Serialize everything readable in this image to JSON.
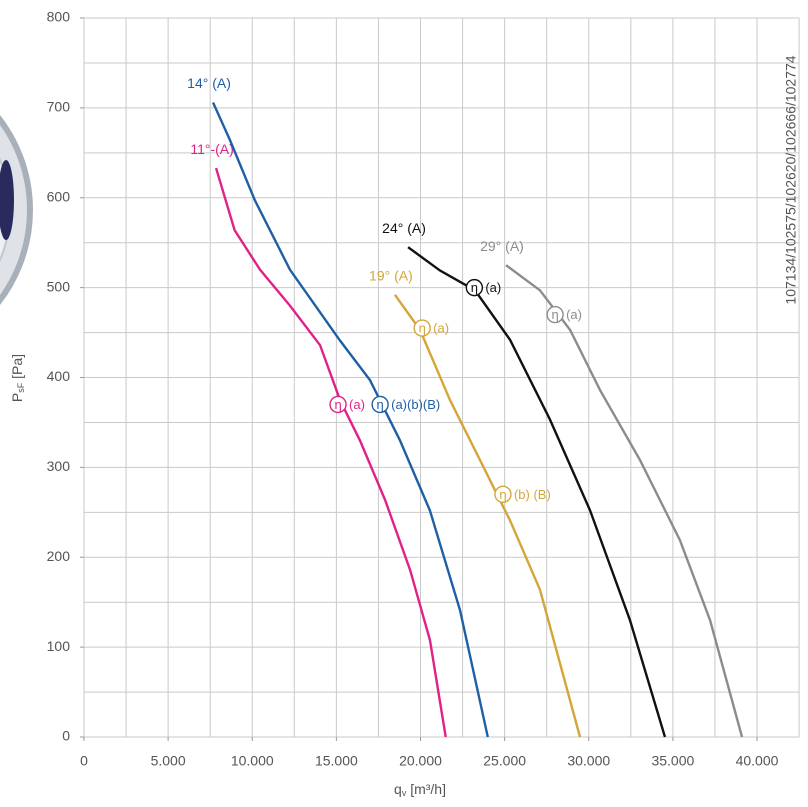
{
  "chart_data": {
    "type": "line",
    "x_label": {
      "main": "q",
      "sub": "v",
      "unit": " [m³/h]"
    },
    "y_label": {
      "main": "P",
      "sub": "sF",
      "unit": " [Pa]"
    },
    "side_text": "107134/102575/102620/102666/102774",
    "xlim": [
      0,
      42500
    ],
    "ylim": [
      0,
      800
    ],
    "xticks": [
      0,
      {
        "value": 5000,
        "label": "5.000"
      },
      {
        "value": 10000,
        "label": "10.000"
      },
      {
        "value": 15000,
        "label": "15.000"
      },
      {
        "value": 20000,
        "label": "20.000"
      },
      {
        "value": 25000,
        "label": "25.000"
      },
      {
        "value": 30000,
        "label": "30.000"
      },
      {
        "value": 35000,
        "label": "35.000"
      },
      {
        "value": 40000,
        "label": "40.000"
      }
    ],
    "yticks": [
      0,
      100,
      200,
      300,
      400,
      500,
      600,
      700,
      800
    ],
    "xgrid": [
      0,
      2500,
      5000,
      7500,
      10000,
      12500,
      15000,
      17500,
      20000,
      22500,
      25000,
      27500,
      30000,
      32500,
      35000,
      37500,
      40000,
      42500
    ],
    "ygrid": [
      0,
      50,
      100,
      150,
      200,
      250,
      300,
      350,
      400,
      450,
      500,
      550,
      600,
      650,
      700,
      750,
      800
    ],
    "grid": true,
    "series": [
      {
        "name": "11°-(A)",
        "color": "#e0218a",
        "x": [
          7850,
          8950,
          10460,
          12240,
          14030,
          15215,
          16400,
          17890,
          19380,
          20560,
          21500
        ],
        "values": [
          633,
          564,
          520,
          480,
          436,
          375,
          330,
          264,
          186,
          108,
          0
        ]
      },
      {
        "name": "14° (A)",
        "color": "#1f5fa6",
        "x": [
          7670,
          8680,
          10160,
          12240,
          15220,
          17000,
          18780,
          20560,
          22350,
          24000
        ],
        "values": [
          706,
          664,
          597,
          520,
          441,
          397,
          330,
          252,
          141,
          0
        ]
      },
      {
        "name": "19° (A)",
        "color": "#d4a63a",
        "x": [
          18480,
          19970,
          21750,
          23540,
          25320,
          27100,
          29480
        ],
        "values": [
          492,
          453,
          375,
          308,
          241,
          164,
          0
        ]
      },
      {
        "name": "24° (A)",
        "color": "#111111",
        "x": [
          19260,
          21160,
          23240,
          25320,
          27700,
          30080,
          32450,
          34530
        ],
        "values": [
          545,
          519,
          497,
          442,
          353,
          252,
          130,
          0
        ]
      },
      {
        "name": "29° (A)",
        "color": "#8c8c8c",
        "x": [
          25080,
          27100,
          28890,
          30670,
          33050,
          35420,
          37210,
          39110
        ],
        "values": [
          525,
          497,
          453,
          386,
          308,
          219,
          130,
          0
        ]
      }
    ],
    "annotations": [
      {
        "symbol": "η",
        "text": "(a)",
        "color": "#e0218a",
        "x": 15100,
        "y": 370
      },
      {
        "symbol": "η",
        "text": "(a)(b)(B)",
        "color": "#1f5fa6",
        "x": 17600,
        "y": 370
      },
      {
        "symbol": "η",
        "text": "(a)",
        "color": "#d4a63a",
        "x": 20100,
        "y": 455
      },
      {
        "symbol": "η",
        "text": "(b) (B)",
        "color": "#d4a63a",
        "x": 24900,
        "y": 270
      },
      {
        "symbol": "η",
        "text": "(a)",
        "color": "#111111",
        "x": 23200,
        "y": 500
      },
      {
        "symbol": "η",
        "text": "(a)",
        "color": "#8c8c8c",
        "x": 28000,
        "y": 470
      }
    ]
  }
}
